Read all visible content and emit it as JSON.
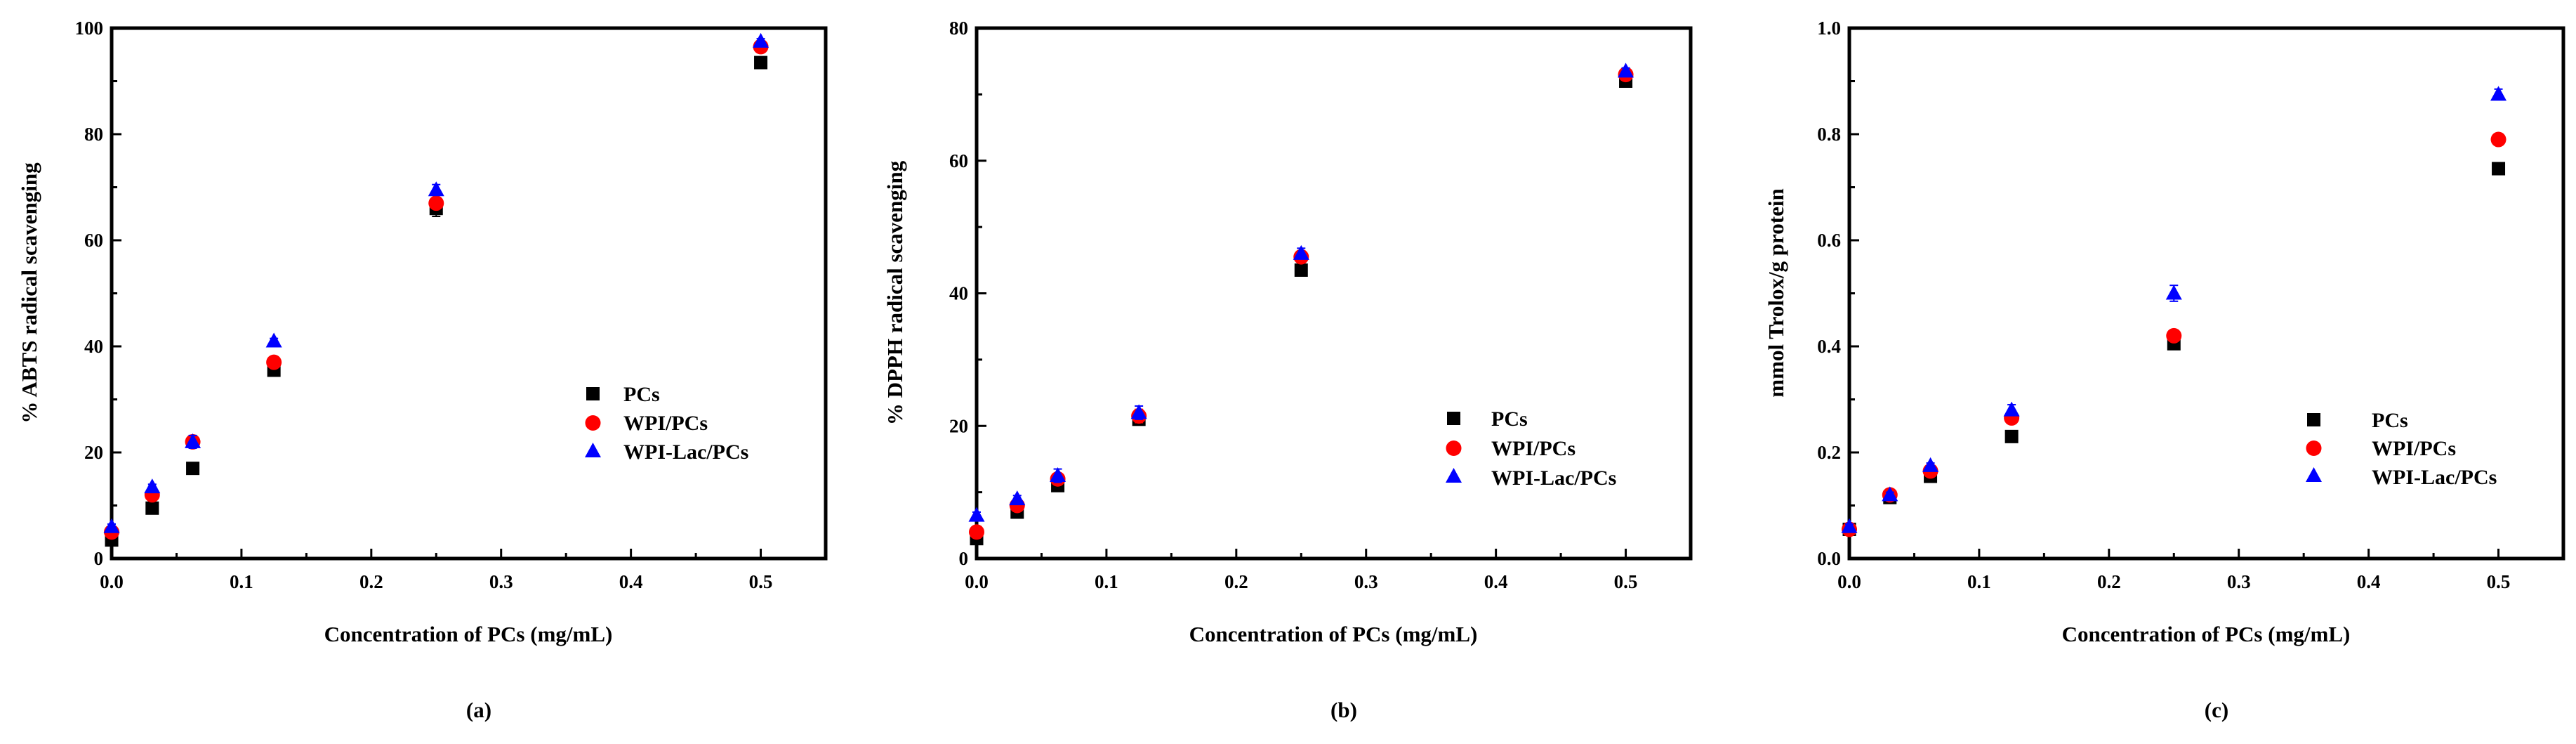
{
  "figure": {
    "series_styles": [
      {
        "name": "PCs",
        "marker": "square",
        "color": "#000000"
      },
      {
        "name": "WPI/PCs",
        "marker": "circle",
        "color": "#ff0000"
      },
      {
        "name": "WPI-Lac/PCs",
        "marker": "triangle",
        "color": "#0000ff"
      }
    ]
  },
  "chart_data": [
    {
      "type": "scatter",
      "panel_label": "(a)",
      "title": "",
      "xlabel": "Concentration of PCs (mg/mL)",
      "ylabel": "% ABTS radical scavenging",
      "xlim": [
        0,
        0.55
      ],
      "ylim": [
        0,
        100
      ],
      "xticks": [
        0.0,
        0.1,
        0.2,
        0.3,
        0.4,
        0.5
      ],
      "xtick_labels": [
        "0.0",
        "0.1",
        "0.2",
        "0.3",
        "0.4",
        "0.5"
      ],
      "yticks": [
        0,
        20,
        40,
        60,
        80,
        100
      ],
      "ytick_labels": [
        "0",
        "20",
        "40",
        "60",
        "80",
        "100"
      ],
      "legend_position": "center-right",
      "x": [
        0.0,
        0.03125,
        0.0625,
        0.125,
        0.25,
        0.5
      ],
      "series": [
        {
          "name": "PCs",
          "values": [
            3.5,
            9.5,
            17,
            35.5,
            66,
            93.5
          ],
          "errors": [
            0.5,
            0.5,
            0.5,
            0.8,
            1.5,
            0.5
          ]
        },
        {
          "name": "WPI/PCs",
          "values": [
            5,
            12,
            22,
            37,
            67,
            96.5
          ],
          "errors": [
            0.5,
            0.5,
            0.5,
            0.8,
            1.0,
            0.5
          ]
        },
        {
          "name": "WPI-Lac/PCs",
          "values": [
            6,
            13.5,
            22,
            41,
            69.5,
            97.5
          ],
          "errors": [
            0.5,
            0.5,
            1.2,
            0.5,
            1.0,
            0.5
          ]
        }
      ]
    },
    {
      "type": "scatter",
      "panel_label": "(b)",
      "title": "",
      "xlabel": "Concentration of PCs (mg/mL)",
      "ylabel": "% DPPH radical scavenging",
      "xlim": [
        0,
        0.55
      ],
      "ylim": [
        0,
        80
      ],
      "xticks": [
        0.0,
        0.1,
        0.2,
        0.3,
        0.4,
        0.5
      ],
      "xtick_labels": [
        "0.0",
        "0.1",
        "0.2",
        "0.3",
        "0.4",
        "0.5"
      ],
      "yticks": [
        0,
        20,
        40,
        60,
        80
      ],
      "ytick_labels": [
        "0",
        "20",
        "40",
        "60",
        "80"
      ],
      "legend_position": "center-right",
      "x": [
        0.0,
        0.03125,
        0.0625,
        0.125,
        0.25,
        0.5
      ],
      "series": [
        {
          "name": "PCs",
          "values": [
            3,
            7,
            11,
            21,
            43.5,
            72
          ],
          "errors": [
            0.5,
            0.5,
            0.5,
            0.5,
            0.5,
            0.5
          ]
        },
        {
          "name": "WPI/PCs",
          "values": [
            4,
            8,
            12,
            21.5,
            45.5,
            73
          ],
          "errors": [
            0.5,
            0.5,
            0.5,
            1.0,
            0.8,
            0.5
          ]
        },
        {
          "name": "WPI-Lac/PCs",
          "values": [
            6.5,
            9,
            12.5,
            22,
            46,
            73.5
          ],
          "errors": [
            0.5,
            0.5,
            1.0,
            1.0,
            0.8,
            0.5
          ]
        }
      ]
    },
    {
      "type": "scatter",
      "panel_label": "(c)",
      "title": "",
      "xlabel": "Concentration of PCs (mg/mL)",
      "ylabel": "mmol Trolox/g protein",
      "xlim": [
        0,
        0.55
      ],
      "ylim": [
        0,
        1.0
      ],
      "xticks": [
        0.0,
        0.1,
        0.2,
        0.3,
        0.4,
        0.5
      ],
      "xtick_labels": [
        "0.0",
        "0.1",
        "0.2",
        "0.3",
        "0.4",
        "0.5"
      ],
      "yticks": [
        0.0,
        0.2,
        0.4,
        0.6,
        0.8,
        1.0
      ],
      "ytick_labels": [
        "0.0",
        "0.2",
        "0.4",
        "0.6",
        "0.8",
        "1.0"
      ],
      "legend_position": "lower-right",
      "x": [
        0.0,
        0.03125,
        0.0625,
        0.125,
        0.25,
        0.5
      ],
      "series": [
        {
          "name": "PCs",
          "values": [
            0.055,
            0.115,
            0.155,
            0.23,
            0.405,
            0.735
          ],
          "errors": [
            0.005,
            0.005,
            0.005,
            0.005,
            0.005,
            0.01
          ]
        },
        {
          "name": "WPI/PCs",
          "values": [
            0.055,
            0.12,
            0.165,
            0.265,
            0.42,
            0.79
          ],
          "errors": [
            0.005,
            0.005,
            0.005,
            0.005,
            0.005,
            0.005
          ]
        },
        {
          "name": "WPI-Lac/PCs",
          "values": [
            0.06,
            0.12,
            0.175,
            0.28,
            0.5,
            0.875
          ],
          "errors": [
            0.005,
            0.005,
            0.005,
            0.01,
            0.015,
            0.01
          ]
        }
      ]
    }
  ]
}
